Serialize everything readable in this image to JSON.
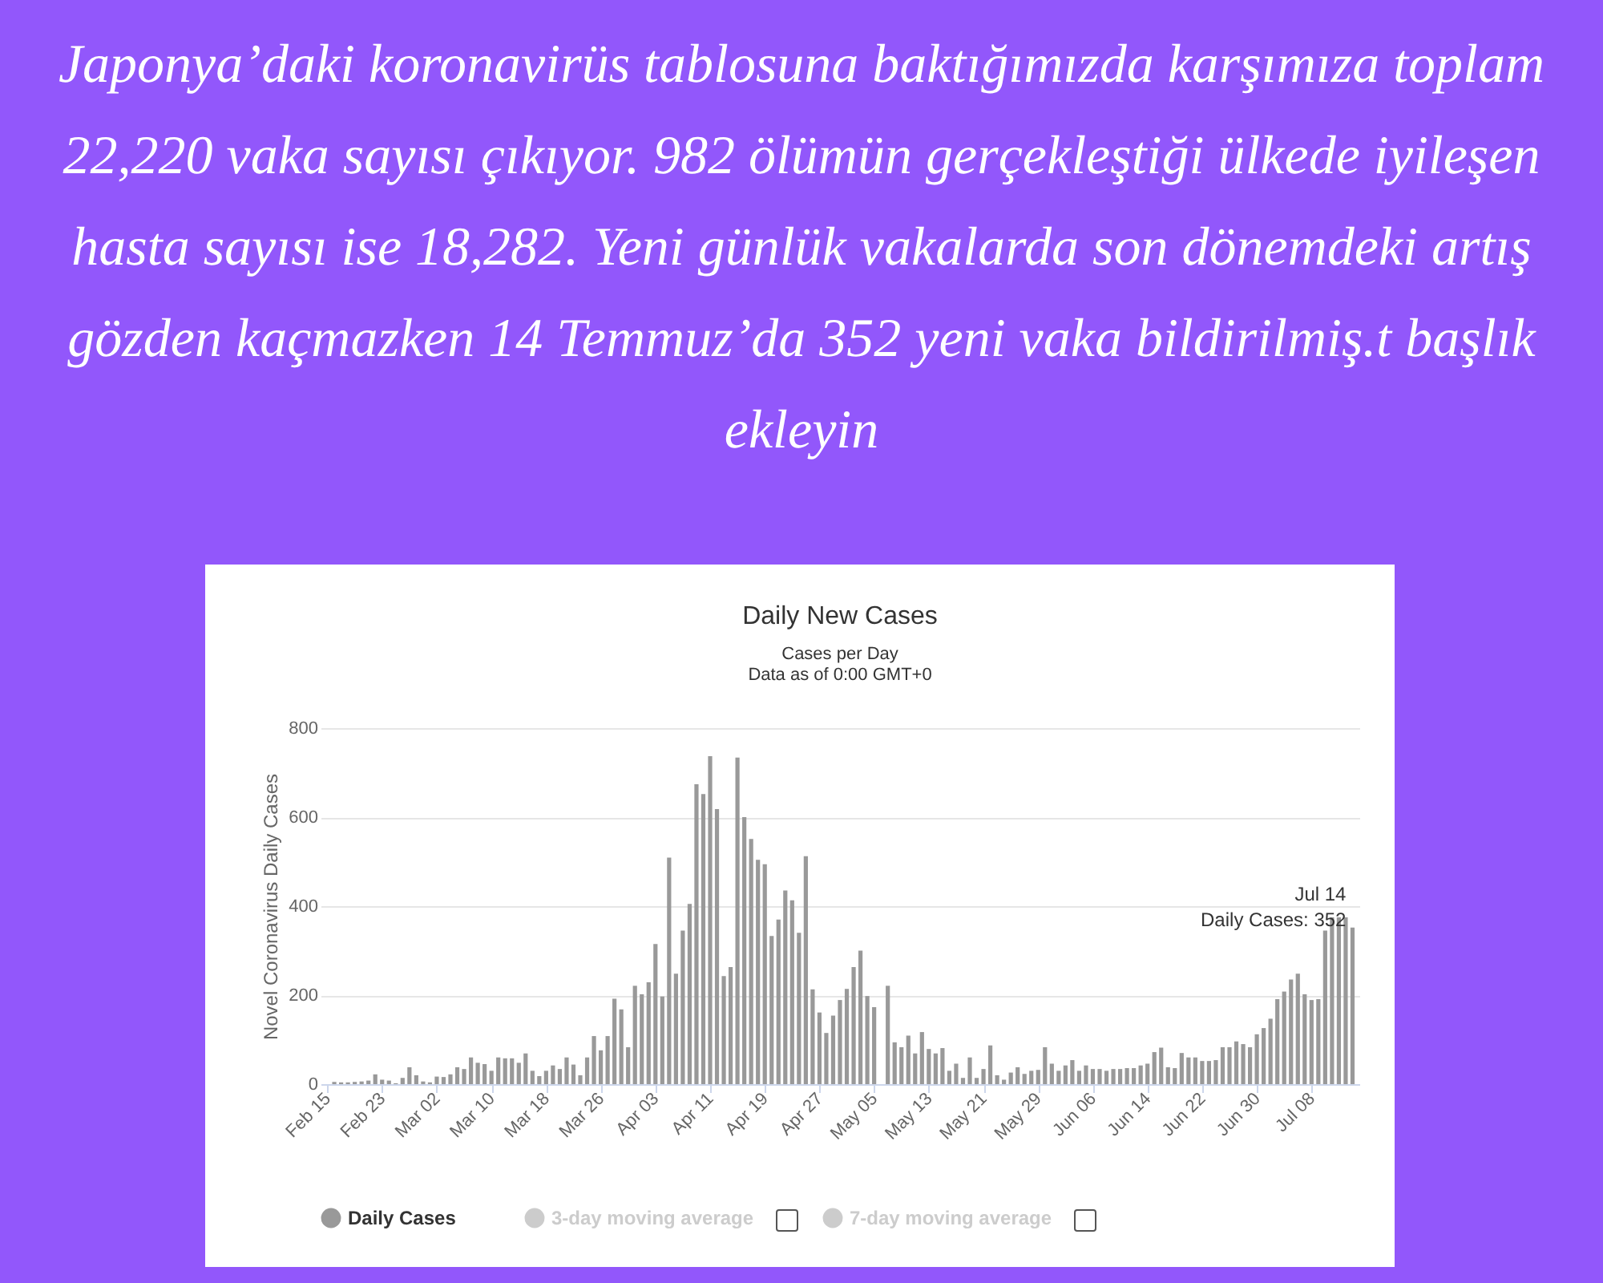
{
  "chart_data": {
    "type": "bar",
    "title": "Daily New Cases",
    "subtitle": "Cases per Day\nData as of 0:00 GMT+0",
    "ylabel": "Novel Coronavirus Daily Cases",
    "annotations": [
      "Japonya’daki koronavirüs tablosuna baktığımızda karşımıza toplam 22,220 vaka sayısı çıkıyor. 982 ölümün gerçekleştiği ülkede iyileşen hasta sayısı ise 18,282. Yeni günlük vakalarda son dönemdeki artış gözden kaçmazken 14 Temmuz’da 352 yeni vaka bildirilmiş.t başlık ekleyin",
      {
        "text": "Jul 14\nDaily Cases: 352",
        "x": "--07-14",
        "y": 352
      }
    ],
    "x": [
      "--02-15",
      "--02-16",
      "--02-17",
      "--02-18",
      "--02-19",
      "--02-20",
      "--02-21",
      "--02-22",
      "--02-23",
      "--02-24",
      "--02-25",
      "--02-26",
      "--02-27",
      "--02-28",
      "--02-29",
      "--03-01",
      "--03-02",
      "--03-03",
      "--03-04",
      "--03-05",
      "--03-06",
      "--03-07",
      "--03-08",
      "--03-09",
      "--03-10",
      "--03-11",
      "--03-12",
      "--03-13",
      "--03-14",
      "--03-15",
      "--03-16",
      "--03-17",
      "--03-18",
      "--03-19",
      "--03-20",
      "--03-21",
      "--03-22",
      "--03-23",
      "--03-24",
      "--03-25",
      "--03-26",
      "--03-27",
      "--03-28",
      "--03-29",
      "--03-30",
      "--03-31",
      "--04-01",
      "--04-02",
      "--04-03",
      "--04-04",
      "--04-05",
      "--04-06",
      "--04-07",
      "--04-08",
      "--04-09",
      "--04-10",
      "--04-11",
      "--04-12",
      "--04-13",
      "--04-14",
      "--04-15",
      "--04-16",
      "--04-17",
      "--04-18",
      "--04-19",
      "--04-20",
      "--04-21",
      "--04-22",
      "--04-23",
      "--04-24",
      "--04-25",
      "--04-26",
      "--04-27",
      "--04-28",
      "--04-29",
      "--04-30",
      "--05-01",
      "--05-02",
      "--05-03",
      "--05-04",
      "--05-05",
      "--05-06",
      "--05-07",
      "--05-08",
      "--05-09",
      "--05-10",
      "--05-11",
      "--05-12",
      "--05-13",
      "--05-14",
      "--05-15",
      "--05-16",
      "--05-17",
      "--05-18",
      "--05-19",
      "--05-20",
      "--05-21",
      "--05-22",
      "--05-23",
      "--05-24",
      "--05-25",
      "--05-26",
      "--05-27",
      "--05-28",
      "--05-29",
      "--05-30",
      "--05-31",
      "--06-01",
      "--06-02",
      "--06-03",
      "--06-04",
      "--06-05",
      "--06-06",
      "--06-07",
      "--06-08",
      "--06-09",
      "--06-10",
      "--06-11",
      "--06-12",
      "--06-13",
      "--06-14",
      "--06-15",
      "--06-16",
      "--06-17",
      "--06-18",
      "--06-19",
      "--06-20",
      "--06-21",
      "--06-22",
      "--06-23",
      "--06-24",
      "--06-25",
      "--06-26",
      "--06-27",
      "--06-28",
      "--06-29",
      "--06-30",
      "--07-01",
      "--07-02",
      "--07-03",
      "--07-04",
      "--07-05",
      "--07-06",
      "--07-07",
      "--07-08",
      "--07-09",
      "--07-10",
      "--07-11",
      "--07-12",
      "--07-13",
      "--07-14"
    ],
    "series": [
      {
        "name": "Daily Cases",
        "color": "#999999",
        "values": [
          0,
          5,
          4,
          4,
          5,
          6,
          8,
          22,
          10,
          8,
          2,
          14,
          38,
          20,
          6,
          4,
          17,
          16,
          22,
          38,
          34,
          60,
          48,
          45,
          30,
          60,
          58,
          58,
          48,
          69,
          30,
          18,
          30,
          42,
          34,
          60,
          44,
          20,
          60,
          108,
          76,
          108,
          192,
          168,
          83,
          221,
          202,
          229,
          315,
          197,
          509,
          248,
          345,
          405,
          674,
          652,
          737,
          618,
          243,
          263,
          734,
          600,
          551,
          504,
          494,
          333,
          370,
          435,
          413,
          340,
          512,
          213,
          161,
          115,
          154,
          189,
          214,
          263,
          300,
          198,
          173,
          0,
          221,
          94,
          83,
          109,
          69,
          117,
          79,
          69,
          81,
          30,
          46,
          14,
          60,
          14,
          34,
          87,
          20,
          10,
          26,
          38,
          23,
          30,
          32,
          83,
          46,
          30,
          42,
          54,
          30,
          42,
          34,
          34,
          30,
          34,
          34,
          36,
          36,
          42,
          46,
          72,
          82,
          38,
          36,
          70,
          60,
          60,
          52,
          52,
          54,
          83,
          83,
          96,
          90,
          83,
          112,
          126,
          147,
          191,
          208,
          235,
          248,
          202,
          189,
          191,
          345,
          375,
          375,
          375,
          352
        ]
      },
      {
        "name": "3-day moving average",
        "type": "line",
        "color": "#cccccc",
        "values": [
          null,
          null,
          null,
          null,
          null,
          null,
          null,
          null,
          null,
          null,
          null,
          null,
          null,
          null,
          null,
          null,
          null,
          null,
          null,
          null,
          null,
          null,
          null,
          null,
          null,
          null,
          null,
          null,
          null,
          null,
          null,
          null,
          null,
          null,
          null,
          null,
          null,
          null,
          null,
          null,
          null,
          null,
          null,
          null,
          null,
          null,
          null,
          null,
          null,
          null,
          null,
          null,
          null,
          null,
          null,
          null,
          null,
          null,
          null,
          null,
          null,
          null,
          null,
          null,
          null,
          null,
          null,
          null,
          null,
          null,
          null,
          null,
          null,
          null,
          null,
          null,
          null,
          null,
          null,
          null,
          null,
          null,
          null,
          null,
          null,
          null,
          null,
          null,
          null,
          null,
          null,
          null,
          null,
          null,
          null,
          null,
          null,
          null,
          null,
          null,
          null,
          null,
          null,
          null,
          null,
          null,
          null,
          null,
          null,
          null,
          null,
          null,
          null,
          null,
          null,
          null,
          null,
          null,
          null,
          null,
          null,
          null,
          null,
          null,
          null,
          null,
          null,
          null,
          null,
          null,
          null,
          null,
          null,
          null,
          null,
          null,
          null,
          null,
          null,
          null,
          null,
          null,
          null,
          null,
          null,
          null,
          null,
          null,
          null,
          null,
          null
        ]
      },
      {
        "name": "7-day moving average",
        "type": "line",
        "color": "#cccccc",
        "values": [
          null,
          null,
          null,
          null,
          null,
          null,
          null,
          null,
          null,
          null,
          null,
          null,
          null,
          null,
          null,
          null,
          null,
          null,
          null,
          null,
          null,
          null,
          null,
          null,
          null,
          null,
          null,
          null,
          null,
          null,
          null,
          null,
          null,
          null,
          null,
          null,
          null,
          null,
          null,
          null,
          null,
          null,
          null,
          null,
          null,
          null,
          null,
          null,
          null,
          null,
          null,
          null,
          null,
          null,
          null,
          null,
          null,
          null,
          null,
          null,
          null,
          null,
          null,
          null,
          null,
          null,
          null,
          null,
          null,
          null,
          null,
          null,
          null,
          null,
          null,
          null,
          null,
          null,
          null,
          null,
          null,
          null,
          null,
          null,
          null,
          null,
          null,
          null,
          null,
          null,
          null,
          null,
          null,
          null,
          null,
          null,
          null,
          null,
          null,
          null,
          null,
          null,
          null,
          null,
          null,
          null,
          null,
          null,
          null,
          null,
          null,
          null,
          null,
          null,
          null,
          null,
          null,
          null,
          null,
          null,
          null,
          null,
          null,
          null,
          null,
          null,
          null,
          null,
          null,
          null,
          null,
          null,
          null,
          null,
          null,
          null,
          null,
          null,
          null,
          null,
          null,
          null,
          null,
          null,
          null,
          null,
          null,
          null,
          null,
          null,
          null
        ]
      }
    ],
    "xlim": [
      "--02-14",
      "--07-15"
    ],
    "xticks": [
      {
        "value": "--02-15",
        "label": "Feb 15"
      },
      {
        "value": "--02-23",
        "label": "Feb 23"
      },
      {
        "value": "--03-02",
        "label": "Mar 02"
      },
      {
        "value": "--03-10",
        "label": "Mar 10"
      },
      {
        "value": "--03-18",
        "label": "Mar 18"
      },
      {
        "value": "--03-26",
        "label": "Mar 26"
      },
      {
        "value": "--04-03",
        "label": "Apr 03"
      },
      {
        "value": "--04-11",
        "label": "Apr 11"
      },
      {
        "value": "--04-19",
        "label": "Apr 19"
      },
      {
        "value": "--04-27",
        "label": "Apr 27"
      },
      {
        "value": "--05-05",
        "label": "May 05"
      },
      {
        "value": "--05-13",
        "label": "May 13"
      },
      {
        "value": "--05-21",
        "label": "May 21"
      },
      {
        "value": "--05-29",
        "label": "May 29"
      },
      {
        "value": "--06-06",
        "label": "Jun 06"
      },
      {
        "value": "--06-14",
        "label": "Jun 14"
      },
      {
        "value": "--06-22",
        "label": "Jun 22"
      },
      {
        "value": "--06-30",
        "label": "Jun 30"
      },
      {
        "value": "--07-08",
        "label": "Jul 08"
      }
    ],
    "ylim": [
      0,
      800
    ],
    "yticks": [
      0,
      200,
      400,
      600,
      800
    ],
    "grid": "y",
    "legend": "bottom"
  }
}
